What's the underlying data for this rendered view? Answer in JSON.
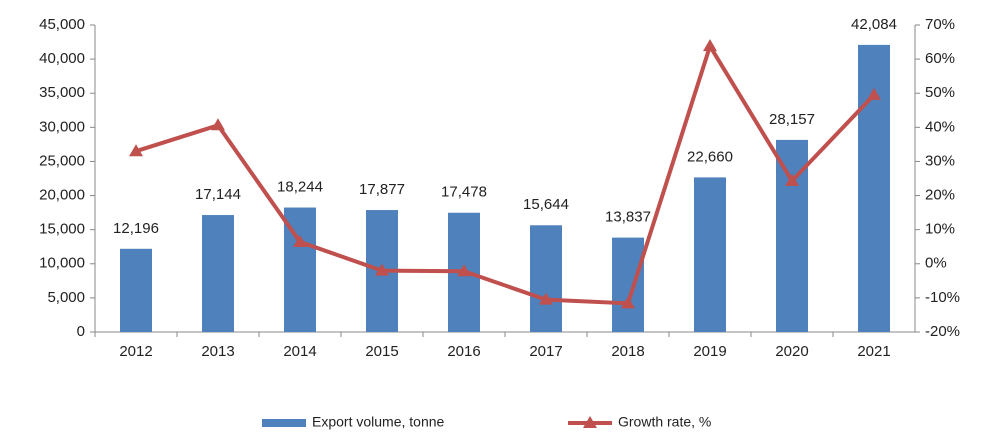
{
  "chart_data": {
    "type": "bar",
    "categories": [
      "2012",
      "2013",
      "2014",
      "2015",
      "2016",
      "2017",
      "2018",
      "2019",
      "2020",
      "2021"
    ],
    "series": [
      {
        "name": "Export volume, tonne",
        "color": "#4f81bd",
        "type": "bar",
        "values": [
          12196,
          17144,
          18244,
          17877,
          17478,
          15644,
          13837,
          22660,
          28157,
          42084
        ],
        "value_labels": [
          "12,196",
          "17,144",
          "18,244",
          "17,877",
          "17,478",
          "15,644",
          "13,837",
          "22,660",
          "28,157",
          "42,084"
        ]
      },
      {
        "name": "Growth rate, %",
        "color": "#c0504d",
        "type": "line",
        "axis": "y2",
        "values": [
          33,
          40.6,
          6.4,
          -2.0,
          -2.2,
          -10.5,
          -11.6,
          63.8,
          24.3,
          49.5
        ]
      }
    ],
    "ylim": [
      0,
      45000
    ],
    "yticks": [
      0,
      {
        "value": 5000,
        "label": "5,000"
      },
      {
        "value": 10000,
        "label": "10,000"
      },
      {
        "value": 15000,
        "label": "15,000"
      },
      {
        "value": 20000,
        "label": "20,000"
      },
      {
        "value": 25000,
        "label": "25,000"
      },
      {
        "value": 30000,
        "label": "30,000"
      },
      {
        "value": 35000,
        "label": "35,000"
      },
      {
        "value": 40000,
        "label": "40,000"
      },
      {
        "value": 45000,
        "label": "45,000"
      }
    ],
    "y2lim": [
      -20,
      70
    ],
    "y2ticks": [
      {
        "value": -20,
        "label": "-20%"
      },
      {
        "value": -10,
        "label": "-10%"
      },
      {
        "value": 0,
        "label": "0%"
      },
      {
        "value": 10,
        "label": "10%"
      },
      {
        "value": 20,
        "label": "20%"
      },
      {
        "value": 30,
        "label": "30%"
      },
      {
        "value": 40,
        "label": "40%"
      },
      {
        "value": 50,
        "label": "50%"
      },
      {
        "value": 60,
        "label": "60%"
      },
      {
        "value": 70,
        "label": "70%"
      }
    ],
    "grid": false,
    "legend": "bottom"
  }
}
